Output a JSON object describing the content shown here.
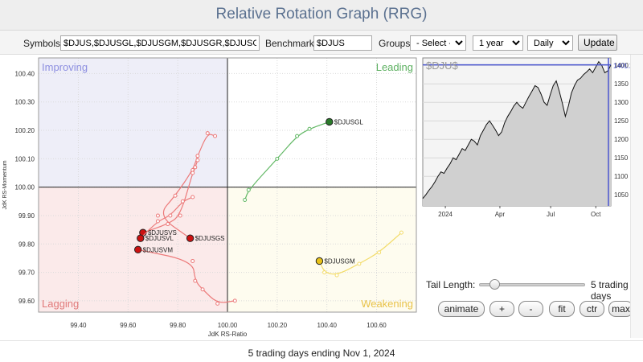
{
  "header": {
    "title": "Relative Rotation Graph (RRG)"
  },
  "controls": {
    "symbols_label": "Symbols:",
    "symbols_value": "$DJUS,$DJUSGL,$DJUSGM,$DJUSGR,$DJUSGS",
    "benchmark_label": "Benchmark:",
    "benchmark_value": "$DJUS",
    "groups_label": "Groups:",
    "groups_value": "- Select -",
    "period_value": "1 year",
    "freq_value": "Daily",
    "update_label": "Update"
  },
  "chart_data": [
    {
      "type": "scatter",
      "title": "",
      "xlabel": "JdK RS-Ratio",
      "ylabel": "JdK RS-Momentum",
      "xlim": [
        99.24,
        100.76
      ],
      "ylim": [
        99.56,
        100.455
      ],
      "x_ticks": [
        "99.40",
        "99.60",
        "99.80",
        "100.00",
        "100.20",
        "100.40",
        "100.60"
      ],
      "y_ticks": [
        "99.60",
        "99.70",
        "99.80",
        "99.90",
        "100.00",
        "100.10",
        "100.20",
        "100.30",
        "100.40"
      ],
      "quadrants": [
        {
          "name": "Improving",
          "color": "#8d8fe0",
          "bg": "#eeeef8"
        },
        {
          "name": "Leading",
          "color": "#5cb060",
          "bg": "#ffffff"
        },
        {
          "name": "Lagging",
          "color": "#e07a7a",
          "bg": "#fbeaea"
        },
        {
          "name": "Weakening",
          "color": "#e8c24a",
          "bg": "#fefcef"
        }
      ],
      "series": [
        {
          "name": "$DJUSGL",
          "color": "#2a7a2a",
          "trail_color": "#62b865",
          "points": [
            [
              100.07,
              99.955
            ],
            [
              100.085,
              99.99
            ],
            [
              100.2,
              100.1
            ],
            [
              100.28,
              100.18
            ],
            [
              100.33,
              100.205
            ],
            [
              100.41,
              100.23
            ]
          ]
        },
        {
          "name": "$DJUSGM",
          "color": "#e8c21a",
          "trail_color": "#f3dc6a",
          "points": [
            [
              100.7,
              99.84
            ],
            [
              100.61,
              99.77
            ],
            [
              100.53,
              99.73
            ],
            [
              100.44,
              99.69
            ],
            [
              100.39,
              99.7
            ],
            [
              100.37,
              99.74
            ]
          ]
        },
        {
          "name": "$DJUSGS",
          "color": "#cc1111",
          "trail_color": "#ec7a7a",
          "points": [
            [
              99.95,
              100.18
            ],
            [
              99.92,
              100.19
            ],
            [
              99.88,
              100.11
            ],
            [
              99.86,
              100.06
            ],
            [
              99.79,
              99.97
            ],
            [
              99.72,
              99.9
            ],
            [
              99.85,
              99.82
            ]
          ]
        },
        {
          "name": "$DJUSVS",
          "color": "#cc1111",
          "trail_color": "#ec7a7a",
          "points": [
            [
              99.88,
              100.095
            ],
            [
              99.87,
              100.07
            ],
            [
              99.86,
              100.05
            ],
            [
              99.81,
              99.9
            ],
            [
              99.76,
              99.87
            ],
            [
              99.66,
              99.84
            ]
          ]
        },
        {
          "name": "$DJUSVL",
          "color": "#cc1111",
          "trail_color": "#ec7a7a",
          "points": [
            [
              99.86,
              99.965
            ],
            [
              99.82,
              99.95
            ],
            [
              99.77,
              99.9
            ],
            [
              99.72,
              99.88
            ],
            [
              99.65,
              99.82
            ]
          ]
        },
        {
          "name": "$DJUSVM",
          "color": "#cc1111",
          "trail_color": "#ec7a7a",
          "points": [
            [
              100.03,
              99.6
            ],
            [
              99.96,
              99.59
            ],
            [
              99.9,
              99.64
            ],
            [
              99.87,
              99.67
            ],
            [
              99.86,
              99.74
            ],
            [
              99.64,
              99.78
            ]
          ]
        }
      ]
    },
    {
      "type": "area",
      "title": "$DJU$",
      "x_ticks": [
        "2024",
        "Apr",
        "Jul",
        "Oct"
      ],
      "y_ticks": [
        "1400",
        "1350",
        "1300",
        "1250",
        "1200",
        "1150",
        "1100",
        "1050"
      ],
      "ylim": [
        1020,
        1420
      ],
      "last_value": "1401.26",
      "values": [
        1040,
        1050,
        1062,
        1072,
        1085,
        1100,
        1112,
        1108,
        1122,
        1134,
        1150,
        1145,
        1160,
        1175,
        1170,
        1185,
        1200,
        1195,
        1185,
        1210,
        1225,
        1240,
        1250,
        1238,
        1225,
        1210,
        1220,
        1245,
        1262,
        1275,
        1290,
        1300,
        1290,
        1284,
        1300,
        1316,
        1330,
        1345,
        1340,
        1322,
        1300,
        1292,
        1320,
        1345,
        1358,
        1330,
        1298,
        1262,
        1290,
        1325,
        1345,
        1360,
        1365,
        1375,
        1382,
        1390,
        1380,
        1395,
        1410,
        1400,
        1380,
        1385,
        1401
      ]
    }
  ],
  "tail": {
    "label": "Tail Length:",
    "value": "5 trading days"
  },
  "buttons": {
    "animate": "animate",
    "plus": "+",
    "minus": "-",
    "fit": "fit",
    "ctr": "ctr",
    "max": "max"
  },
  "footer": "5 trading days ending Nov 1, 2024"
}
